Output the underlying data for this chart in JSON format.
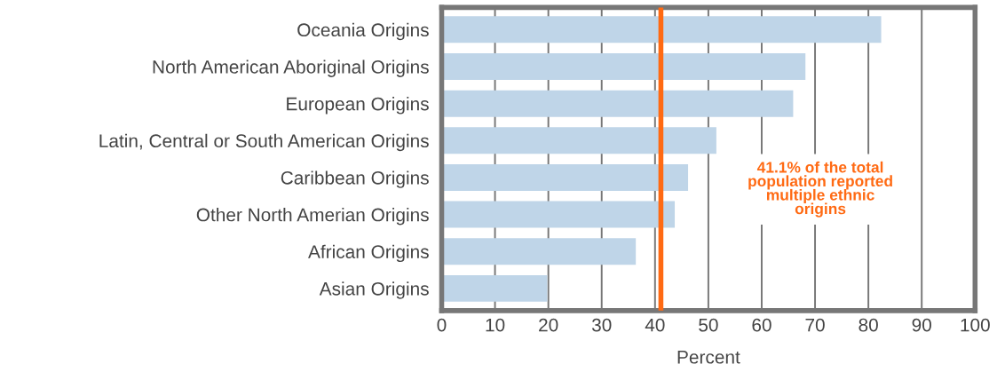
{
  "chart_data": {
    "type": "bar",
    "orientation": "horizontal",
    "categories": [
      "Oceania Origins",
      "North American Aboriginal Origins",
      "European Origins",
      "Latin, Central or South American Origins",
      "Caribbean Origins",
      "Other North Amerian Origins",
      "African Origins",
      "Asian Origins"
    ],
    "values": [
      82.4,
      68.2,
      65.9,
      51.5,
      46.2,
      43.7,
      36.4,
      19.8
    ],
    "color": "#bfd5e8",
    "xlabel": "Percent",
    "xlim": [
      0,
      100
    ],
    "xticks": [
      0,
      10,
      20,
      30,
      40,
      50,
      60,
      70,
      80,
      90,
      100
    ],
    "grid": "x",
    "ref_lines": [
      {
        "axis": "x",
        "value": 41.1,
        "color": "#ff6a13"
      }
    ],
    "annotations": [
      "41.1% of the total\npopulation reported\nmultiple ethnic\norigins"
    ]
  }
}
